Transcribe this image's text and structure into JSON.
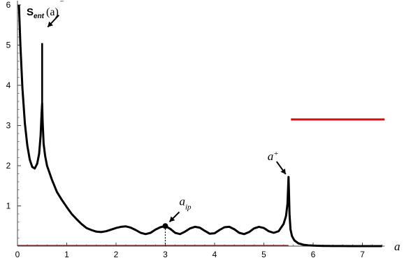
{
  "chart_data": {
    "type": "line",
    "title": "",
    "ylabel": {
      "main": "S",
      "sub": "ent",
      "arg": "(a)"
    },
    "xlabel": "a",
    "xlim": [
      0,
      7.45
    ],
    "ylim": [
      0,
      6.0
    ],
    "x_ticks": [
      0,
      1,
      2,
      3,
      4,
      5,
      6,
      7
    ],
    "y_ticks": [
      1,
      2,
      3,
      4,
      5,
      6
    ],
    "grid": false,
    "colors": {
      "curve": "#000000",
      "reference": "#cc1111",
      "baseline": "#8b1a1a"
    },
    "series": [
      {
        "x": [
          0.03,
          0.06,
          0.1,
          0.15,
          0.2,
          0.25,
          0.3,
          0.35,
          0.4,
          0.44,
          0.47,
          0.49,
          0.5,
          0.51,
          0.53,
          0.56,
          0.6,
          0.7,
          0.8,
          0.9,
          1.0,
          1.1,
          1.2,
          1.3,
          1.4,
          1.5,
          1.6,
          1.7,
          1.8,
          1.9,
          2.0,
          2.1,
          2.2,
          2.3,
          2.4,
          2.5,
          2.6,
          2.7,
          2.8,
          2.9,
          3.0,
          3.1,
          3.2,
          3.3,
          3.4,
          3.5,
          3.6,
          3.7,
          3.8,
          3.9,
          4.0,
          4.1,
          4.2,
          4.3,
          4.4,
          4.5,
          4.6,
          4.7,
          4.8,
          4.9,
          5.0,
          5.1,
          5.2,
          5.3,
          5.4,
          5.45,
          5.48,
          5.5,
          5.51,
          5.52,
          5.54,
          5.57,
          5.62,
          5.7,
          5.8,
          5.9,
          6.0,
          6.1,
          6.2,
          6.3,
          6.4,
          6.6,
          6.8,
          7.0,
          7.2,
          7.4
        ],
        "y": [
          6.0,
          5.0,
          3.95,
          3.05,
          2.5,
          2.15,
          1.97,
          1.93,
          2.05,
          2.3,
          2.75,
          3.3,
          3.55,
          3.1,
          2.55,
          2.25,
          2.0,
          1.65,
          1.35,
          1.15,
          0.97,
          0.8,
          0.67,
          0.55,
          0.45,
          0.4,
          0.36,
          0.35,
          0.37,
          0.41,
          0.45,
          0.48,
          0.49,
          0.46,
          0.4,
          0.33,
          0.3,
          0.33,
          0.41,
          0.47,
          0.5,
          0.43,
          0.33,
          0.3,
          0.36,
          0.44,
          0.48,
          0.46,
          0.38,
          0.31,
          0.32,
          0.4,
          0.47,
          0.48,
          0.42,
          0.33,
          0.3,
          0.35,
          0.44,
          0.48,
          0.45,
          0.37,
          0.33,
          0.37,
          0.55,
          0.75,
          1.05,
          1.72,
          1.3,
          0.8,
          0.42,
          0.25,
          0.14,
          0.07,
          0.035,
          0.02,
          0.012,
          0.008,
          0.005,
          0.003,
          0.002,
          0.001,
          0.0,
          0.0,
          0.0,
          0.0
        ]
      },
      {
        "x": [
          0.5,
          0.5
        ],
        "y": [
          3.55,
          5.05
        ]
      }
    ],
    "reference_lines": [
      {
        "x": [
          5.55,
          7.45
        ],
        "y": [
          3.15,
          3.15
        ]
      },
      {
        "x": [
          0,
          5.5
        ],
        "y": [
          0,
          0
        ]
      }
    ],
    "annotations": [
      {
        "text": "a",
        "sub": "−",
        "x": 0.5,
        "y": 5.05
      },
      {
        "text": "a",
        "sub": "ip",
        "x": 3.0,
        "y": 0.5,
        "marker": "point",
        "dotted_drop": true
      },
      {
        "text": "a",
        "sub": "+",
        "x": 5.5,
        "y": 1.72
      }
    ]
  }
}
